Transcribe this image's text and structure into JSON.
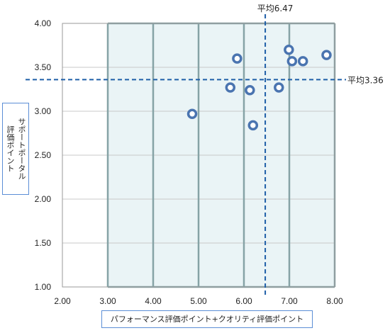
{
  "chart_data": {
    "type": "scatter",
    "xlabel": "パフォーマンス評価ポイント+クオリティ評価ポイント",
    "ylabel_lines": [
      "サポートポータル",
      "評価ポイント"
    ],
    "xlim": [
      2.0,
      8.0
    ],
    "ylim": [
      1.0,
      4.0
    ],
    "x_ticks": [
      "2.00",
      "3.00",
      "4.00",
      "5.00",
      "6.00",
      "7.00",
      "8.00"
    ],
    "y_ticks": [
      "1.00",
      "1.50",
      "2.00",
      "2.50",
      "3.00",
      "3.50",
      "4.00"
    ],
    "shaded_region": {
      "x": [
        3.0,
        8.0
      ],
      "y": [
        1.0,
        4.0
      ]
    },
    "points": [
      {
        "x": 4.86,
        "y": 2.97
      },
      {
        "x": 5.7,
        "y": 3.27
      },
      {
        "x": 5.85,
        "y": 3.6
      },
      {
        "x": 6.13,
        "y": 3.24
      },
      {
        "x": 6.2,
        "y": 2.84
      },
      {
        "x": 6.77,
        "y": 3.27
      },
      {
        "x": 6.99,
        "y": 3.7
      },
      {
        "x": 7.06,
        "y": 3.57
      },
      {
        "x": 7.3,
        "y": 3.57
      },
      {
        "x": 7.82,
        "y": 3.64
      }
    ],
    "reference_lines": {
      "x_mean": {
        "value": 6.47,
        "label": "平均6.47"
      },
      "y_mean": {
        "value": 3.36,
        "label": "平均3.36"
      }
    },
    "grid": true,
    "legend": "none"
  },
  "colors": {
    "marker_stroke": "#4a74b0",
    "reference_line": "#1f5fa8",
    "region_fill": "#eaf4f6",
    "region_border": "#86a3a6",
    "grid": "#c8c8c8",
    "axis_box_border": "#5b8ed6"
  }
}
